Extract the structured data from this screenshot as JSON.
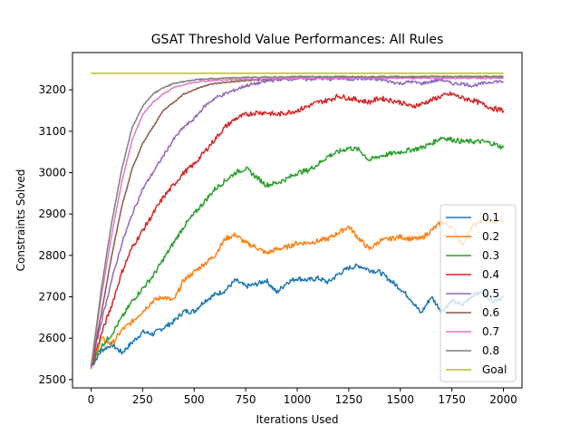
{
  "chart_data": {
    "type": "line",
    "title": "GSAT Threshold Value Performances: All Rules",
    "xlabel": "Iterations Used",
    "ylabel": "Constraints Solved",
    "xlim": [
      -90,
      2090
    ],
    "ylim": [
      2480,
      3290
    ],
    "xticks": [
      0,
      250,
      500,
      750,
      1000,
      1250,
      1500,
      1750,
      2000
    ],
    "yticks": [
      2500,
      2600,
      2700,
      2800,
      2900,
      3000,
      3100,
      3200
    ],
    "grid": false,
    "legend_position": "lower right",
    "series": [
      {
        "name": "0.1",
        "color": "#1f77b4",
        "x": [
          0,
          50,
          100,
          150,
          200,
          250,
          300,
          350,
          400,
          450,
          500,
          550,
          600,
          650,
          700,
          750,
          800,
          850,
          900,
          950,
          1000,
          1050,
          1100,
          1150,
          1200,
          1250,
          1300,
          1350,
          1400,
          1450,
          1500,
          1550,
          1600,
          1650,
          1700,
          1750,
          1800,
          1850,
          1900,
          1950,
          2000
        ],
        "y": [
          2530,
          2570,
          2585,
          2565,
          2590,
          2615,
          2610,
          2625,
          2640,
          2665,
          2665,
          2690,
          2705,
          2715,
          2740,
          2725,
          2730,
          2740,
          2710,
          2735,
          2745,
          2740,
          2745,
          2735,
          2755,
          2770,
          2775,
          2765,
          2760,
          2740,
          2720,
          2695,
          2660,
          2700,
          2665,
          2690,
          2680,
          2705,
          2710,
          2690,
          2700
        ]
      },
      {
        "name": "0.2",
        "color": "#ff7f0e",
        "x": [
          0,
          50,
          100,
          150,
          200,
          250,
          300,
          350,
          400,
          450,
          500,
          550,
          600,
          650,
          700,
          750,
          800,
          850,
          900,
          950,
          1000,
          1050,
          1100,
          1150,
          1200,
          1250,
          1300,
          1350,
          1400,
          1450,
          1500,
          1550,
          1600,
          1650,
          1700,
          1750,
          1800,
          1850,
          1900,
          1950,
          2000
        ],
        "y": [
          2525,
          2600,
          2585,
          2620,
          2640,
          2665,
          2690,
          2700,
          2690,
          2740,
          2760,
          2780,
          2800,
          2840,
          2850,
          2830,
          2820,
          2805,
          2815,
          2820,
          2830,
          2830,
          2835,
          2840,
          2855,
          2870,
          2840,
          2815,
          2835,
          2840,
          2845,
          2840,
          2840,
          2860,
          2880,
          2870,
          2825,
          2870,
          2885,
          2880,
          2885
        ]
      },
      {
        "name": "0.3",
        "color": "#2ca02c",
        "x": [
          0,
          50,
          100,
          150,
          200,
          250,
          300,
          350,
          400,
          450,
          500,
          550,
          600,
          650,
          700,
          750,
          800,
          850,
          900,
          950,
          1000,
          1050,
          1100,
          1150,
          1200,
          1250,
          1300,
          1350,
          1400,
          1450,
          1500,
          1550,
          1600,
          1650,
          1700,
          1750,
          1800,
          1850,
          1900,
          1950,
          2000
        ],
        "y": [
          2535,
          2580,
          2610,
          2650,
          2690,
          2720,
          2750,
          2790,
          2830,
          2870,
          2900,
          2930,
          2960,
          2980,
          3000,
          3010,
          2990,
          2970,
          2975,
          2985,
          3000,
          3005,
          3020,
          3040,
          3050,
          3060,
          3055,
          3030,
          3040,
          3045,
          3050,
          3055,
          3060,
          3070,
          3085,
          3080,
          3075,
          3075,
          3075,
          3070,
          3060
        ]
      },
      {
        "name": "0.4",
        "color": "#d62728",
        "x": [
          0,
          50,
          100,
          150,
          200,
          250,
          300,
          350,
          400,
          450,
          500,
          550,
          600,
          650,
          700,
          750,
          800,
          850,
          900,
          950,
          1000,
          1050,
          1100,
          1150,
          1200,
          1250,
          1300,
          1350,
          1400,
          1450,
          1500,
          1550,
          1600,
          1650,
          1700,
          1750,
          1800,
          1850,
          1900,
          1950,
          2000
        ],
        "y": [
          2530,
          2610,
          2680,
          2760,
          2820,
          2860,
          2900,
          2940,
          2970,
          3000,
          3020,
          3050,
          3080,
          3110,
          3130,
          3140,
          3145,
          3145,
          3140,
          3145,
          3150,
          3160,
          3170,
          3175,
          3185,
          3180,
          3175,
          3170,
          3180,
          3175,
          3170,
          3160,
          3165,
          3175,
          3185,
          3190,
          3180,
          3175,
          3165,
          3155,
          3150
        ]
      },
      {
        "name": "0.5",
        "color": "#9467bd",
        "x": [
          0,
          50,
          100,
          150,
          200,
          250,
          300,
          350,
          400,
          450,
          500,
          550,
          600,
          650,
          700,
          750,
          800,
          850,
          900,
          950,
          1000,
          1050,
          1100,
          1150,
          1200,
          1250,
          1300,
          1350,
          1400,
          1450,
          1500,
          1550,
          1600,
          1650,
          1700,
          1750,
          1800,
          1850,
          1900,
          1950,
          2000
        ],
        "y": [
          2530,
          2640,
          2740,
          2830,
          2900,
          2960,
          3000,
          3040,
          3080,
          3110,
          3130,
          3160,
          3180,
          3190,
          3200,
          3210,
          3215,
          3220,
          3225,
          3225,
          3228,
          3225,
          3228,
          3225,
          3228,
          3225,
          3228,
          3225,
          3225,
          3220,
          3215,
          3220,
          3215,
          3220,
          3225,
          3215,
          3215,
          3210,
          3215,
          3220,
          3220
        ]
      },
      {
        "name": "0.6",
        "color": "#8c564b",
        "x": [
          0,
          50,
          100,
          150,
          200,
          250,
          300,
          350,
          400,
          450,
          500,
          550,
          600,
          650,
          700,
          750,
          800,
          850,
          900,
          950,
          1000,
          1050,
          1100,
          1150,
          1200,
          1250,
          1300,
          1350,
          1400,
          1450,
          1500,
          1550,
          1600,
          1650,
          1700,
          1750,
          1800,
          1850,
          1900,
          1950,
          2000
        ],
        "y": [
          2530,
          2660,
          2800,
          2920,
          3010,
          3070,
          3110,
          3150,
          3170,
          3190,
          3200,
          3210,
          3215,
          3218,
          3220,
          3222,
          3224,
          3225,
          3226,
          3227,
          3228,
          3228,
          3229,
          3229,
          3230,
          3230,
          3230,
          3230,
          3231,
          3231,
          3231,
          3231,
          3231,
          3232,
          3232,
          3232,
          3232,
          3232,
          3232,
          3232,
          3232
        ]
      },
      {
        "name": "0.7",
        "color": "#e377c2",
        "x": [
          0,
          50,
          100,
          150,
          200,
          250,
          300,
          350,
          400,
          450,
          500,
          550,
          600,
          650,
          700,
          750,
          800,
          850,
          900,
          950,
          1000,
          1050,
          1100,
          1150,
          1200,
          1250,
          1300,
          1350,
          1400,
          1450,
          1500,
          1550,
          1600,
          1650,
          1700,
          1750,
          1800,
          1850,
          1900,
          1950,
          2000
        ],
        "y": [
          2530,
          2700,
          2850,
          2980,
          3080,
          3140,
          3170,
          3190,
          3205,
          3212,
          3218,
          3221,
          3223,
          3224,
          3225,
          3226,
          3226,
          3227,
          3227,
          3227,
          3228,
          3228,
          3228,
          3228,
          3228,
          3228,
          3228,
          3228,
          3228,
          3228,
          3228,
          3228,
          3228,
          3228,
          3228,
          3228,
          3228,
          3228,
          3228,
          3228,
          3228
        ]
      },
      {
        "name": "0.8",
        "color": "#7f7f7f",
        "x": [
          0,
          50,
          100,
          150,
          200,
          250,
          300,
          350,
          400,
          450,
          500,
          550,
          600,
          650,
          700,
          750,
          800,
          850,
          900,
          950,
          1000,
          1050,
          1100,
          1150,
          1200,
          1250,
          1300,
          1350,
          1400,
          1450,
          1500,
          1550,
          1600,
          1650,
          1700,
          1750,
          1800,
          1850,
          1900,
          1950,
          2000
        ],
        "y": [
          2530,
          2720,
          2880,
          3010,
          3110,
          3160,
          3190,
          3205,
          3215,
          3220,
          3224,
          3226,
          3227,
          3228,
          3229,
          3230,
          3230,
          3231,
          3231,
          3231,
          3232,
          3232,
          3232,
          3232,
          3232,
          3232,
          3232,
          3232,
          3232,
          3232,
          3232,
          3232,
          3232,
          3232,
          3232,
          3232,
          3232,
          3232,
          3232,
          3232,
          3232
        ]
      },
      {
        "name": "Goal",
        "color": "#bcbd22",
        "x": [
          0,
          2000
        ],
        "y": [
          3240,
          3240
        ]
      }
    ]
  }
}
